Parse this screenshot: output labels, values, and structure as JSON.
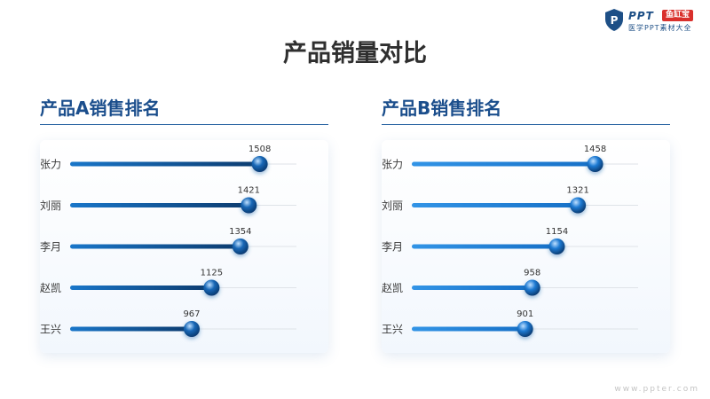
{
  "brand": {
    "name": "PPT",
    "badge": "鱼缸宝",
    "tagline": "医学PPT素材大全",
    "url": "www.ppter.com"
  },
  "title": "产品销量对比",
  "chart_data": [
    {
      "type": "bar",
      "title": "产品A销售排名",
      "categories": [
        "张力",
        "刘丽",
        "李月",
        "赵凯",
        "王兴"
      ],
      "values": [
        1508,
        1421,
        1354,
        1125,
        967
      ],
      "xlim": [
        0,
        1800
      ],
      "grid": false,
      "colors": {
        "bar_start": "#1976c9",
        "bar_end": "#0c3b6e",
        "track": "#dfe3e8",
        "knob": "#1767b6"
      }
    },
    {
      "type": "bar",
      "title": "产品B销售排名",
      "categories": [
        "张力",
        "刘丽",
        "李月",
        "赵凯",
        "王兴"
      ],
      "values": [
        1458,
        1321,
        1154,
        958,
        901
      ],
      "xlim": [
        0,
        1800
      ],
      "grid": false,
      "colors": {
        "bar_start": "#3294e6",
        "bar_end": "#1670c7",
        "track": "#dfe3e8",
        "knob": "#1d7ad3"
      }
    }
  ]
}
